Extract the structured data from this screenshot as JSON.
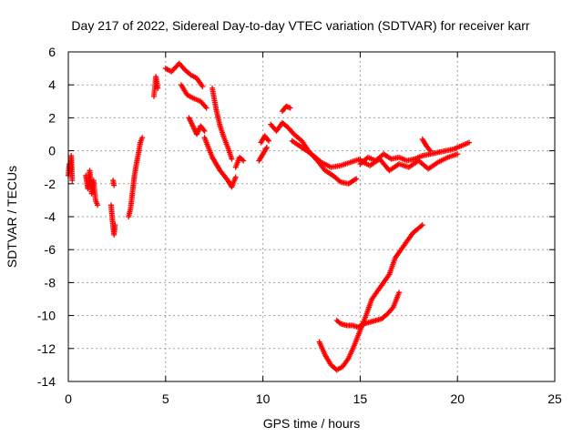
{
  "chart_data": {
    "type": "scatter",
    "title": "Day 217 of 2022, Sidereal Day-to-day VTEC variation (SDTVAR) for receiver karr",
    "xlabel": "GPS time / hours",
    "ylabel": "SDTVAR / TECUs",
    "xlim": [
      0,
      25
    ],
    "ylim": [
      -14,
      6
    ],
    "xticks": [
      0,
      5,
      10,
      15,
      20,
      25
    ],
    "yticks": [
      -14,
      -12,
      -10,
      -8,
      -6,
      -4,
      -2,
      0,
      2,
      4,
      6
    ],
    "grid": true,
    "marker": "+",
    "color": "#ff0000",
    "segments": [
      {
        "x": [
          0.0,
          0.05,
          0.1,
          0.15,
          0.2
        ],
        "y": [
          -1.5,
          -0.8,
          -1.2,
          -0.3,
          -1.8
        ]
      },
      {
        "x": [
          0.9,
          1.0,
          1.1,
          1.2,
          1.3,
          1.4,
          1.5
        ],
        "y": [
          -1.5,
          -2.3,
          -1.2,
          -2.6,
          -1.8,
          -3.0,
          -3.3
        ]
      },
      {
        "x": [
          2.2,
          2.25,
          2.3,
          2.35,
          2.4
        ],
        "y": [
          -3.3,
          -4.0,
          -4.6,
          -5.1,
          -4.5
        ]
      },
      {
        "x": [
          2.3,
          2.35
        ],
        "y": [
          -1.8,
          -2.1
        ]
      },
      {
        "x": [
          3.1,
          3.2,
          3.3,
          3.4,
          3.5,
          3.6,
          3.7,
          3.8
        ],
        "y": [
          -4.0,
          -3.5,
          -2.5,
          -1.5,
          -0.8,
          -0.2,
          0.5,
          0.8
        ]
      },
      {
        "x": [
          4.4,
          4.5,
          4.6
        ],
        "y": [
          3.3,
          4.5,
          3.8
        ]
      },
      {
        "x": [
          5.0,
          5.3,
          5.7,
          6.0,
          6.3,
          6.6,
          6.9
        ],
        "y": [
          5.0,
          4.8,
          5.3,
          4.9,
          4.6,
          4.4,
          3.9
        ]
      },
      {
        "x": [
          5.8,
          6.1,
          6.4,
          6.8,
          7.1
        ],
        "y": [
          4.0,
          3.4,
          3.2,
          3.0,
          2.6
        ]
      },
      {
        "x": [
          6.2,
          6.4,
          6.6,
          6.8,
          7.0
        ],
        "y": [
          2.0,
          1.5,
          1.0,
          1.5,
          1.2
        ]
      },
      {
        "x": [
          7.0,
          7.2,
          7.4,
          7.6,
          7.8,
          8.0,
          8.2,
          8.4,
          8.6
        ],
        "y": [
          0.8,
          0.2,
          -0.4,
          -0.8,
          -1.2,
          -1.5,
          -1.8,
          -2.2,
          -1.6
        ]
      },
      {
        "x": [
          7.4,
          7.6,
          7.8,
          8.0,
          8.2,
          8.4
        ],
        "y": [
          3.8,
          2.5,
          1.5,
          0.8,
          0.2,
          -0.5
        ]
      },
      {
        "x": [
          8.6,
          8.8,
          9.0
        ],
        "y": [
          -1.0,
          -0.4,
          -0.6
        ]
      },
      {
        "x": [
          9.8,
          10.0,
          10.2
        ],
        "y": [
          -0.6,
          -0.2,
          0.2
        ]
      },
      {
        "x": [
          9.9,
          10.1,
          10.3
        ],
        "y": [
          0.5,
          0.9,
          0.6
        ]
      },
      {
        "x": [
          10.4,
          10.7,
          11.0,
          11.3,
          11.6,
          12.0,
          12.4,
          12.8,
          13.2,
          13.6,
          14.0,
          14.4,
          14.8
        ],
        "y": [
          1.6,
          1.2,
          1.7,
          1.4,
          1.0,
          0.6,
          -0.1,
          -0.6,
          -1.2,
          -1.5,
          -1.9,
          -2.0,
          -1.7
        ]
      },
      {
        "x": [
          11.0,
          11.2,
          11.4
        ],
        "y": [
          2.4,
          2.7,
          2.6
        ]
      },
      {
        "x": [
          11.5,
          12.0,
          12.5,
          13.0,
          13.5,
          14.0,
          14.5,
          15.0
        ],
        "y": [
          0.6,
          0.2,
          -0.2,
          -0.7,
          -1.0,
          -0.9,
          -0.7,
          -0.5
        ]
      },
      {
        "x": [
          15.0,
          15.4,
          15.8,
          16.2,
          16.6,
          17.0,
          17.4,
          17.8,
          18.2,
          18.6,
          19.0,
          19.4,
          19.8,
          20.2,
          20.6
        ],
        "y": [
          -0.8,
          -0.4,
          -0.6,
          -0.2,
          -0.5,
          -0.4,
          -0.6,
          -0.5,
          -0.3,
          -0.2,
          -0.1,
          0.0,
          0.1,
          0.3,
          0.5
        ]
      },
      {
        "x": [
          15.0,
          15.5,
          16.0,
          16.5,
          17.0,
          17.5,
          18.0,
          18.5,
          19.0,
          19.5,
          20.0
        ],
        "y": [
          -0.6,
          -0.9,
          -0.5,
          -1.2,
          -0.8,
          -1.0,
          -0.6,
          -1.1,
          -0.7,
          -0.4,
          -0.2
        ]
      },
      {
        "x": [
          18.2,
          18.4,
          18.6
        ],
        "y": [
          0.7,
          0.3,
          0.0
        ]
      },
      {
        "x": [
          12.9,
          13.2,
          13.5,
          13.8,
          14.1,
          14.4,
          14.7,
          15.0,
          15.3,
          15.6,
          15.9,
          16.2,
          16.5,
          16.8,
          17.1,
          17.4,
          17.7,
          18.0,
          18.2
        ],
        "y": [
          -11.6,
          -12.4,
          -13.0,
          -13.3,
          -13.1,
          -12.6,
          -11.8,
          -10.9,
          -10.0,
          -9.0,
          -8.5,
          -8.0,
          -7.5,
          -6.5,
          -6.0,
          -5.5,
          -5.0,
          -4.7,
          -4.5
        ]
      },
      {
        "x": [
          13.8,
          14.0,
          14.3,
          14.6,
          14.9,
          15.2,
          15.5,
          15.8,
          16.1,
          16.4,
          16.7,
          17.0
        ],
        "y": [
          -10.3,
          -10.5,
          -10.6,
          -10.6,
          -10.7,
          -10.5,
          -10.4,
          -10.3,
          -10.2,
          -9.9,
          -9.5,
          -8.6
        ]
      }
    ]
  }
}
